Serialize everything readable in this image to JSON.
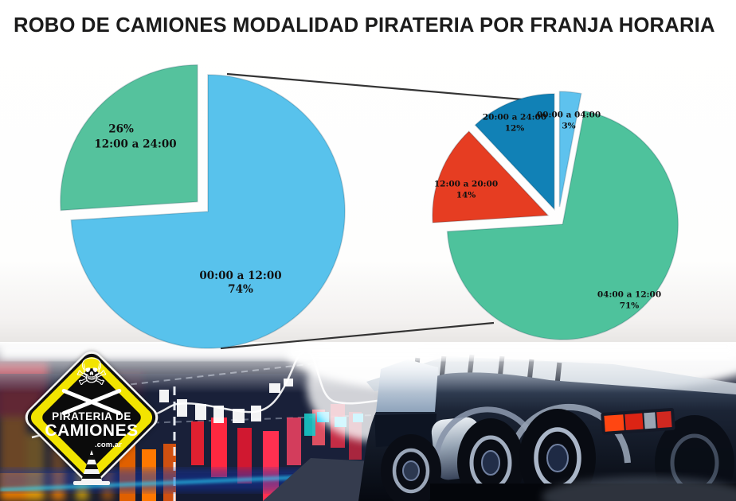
{
  "title": "ROBO DE CAMIONES MODALIDAD PIRATERIA POR FRANJA HORARIA",
  "logo": {
    "line1": "PIRATERIA DE",
    "line2": "CAMIONES",
    "line3": ".com.ar",
    "icon": "skull-crossbones-icon"
  },
  "chart_data": [
    {
      "type": "pie",
      "name": "robos-por-franja-principal",
      "title": "",
      "start_angle_deg": 0,
      "direction": "clockwise",
      "legend": "none",
      "labels": "inside",
      "slices": [
        {
          "label": "00:00 a 12:00",
          "value": 74,
          "pct_label": "74%",
          "color": "#58c2ec",
          "explode": 0
        },
        {
          "label": "12:00 a 24:00",
          "value": 26,
          "pct_label": "26%",
          "color": "#55c29d",
          "explode": 18
        }
      ]
    },
    {
      "type": "pie",
      "name": "robos-por-franja-detalle",
      "title": "",
      "start_angle_deg": 0,
      "direction": "clockwise",
      "legend": "none",
      "labels": "inside",
      "slices": [
        {
          "label": "00:00 a 04:00",
          "value": 3,
          "pct_label": "3%",
          "color": "#5ec2ee",
          "explode": 16
        },
        {
          "label": "04:00 a 12:00",
          "value": 71,
          "pct_label": "71%",
          "color": "#4ec29c",
          "explode": 8
        },
        {
          "label": "12:00 a 20:00",
          "value": 14,
          "pct_label": "14%",
          "color": "#e63d22",
          "explode": 14
        },
        {
          "label": "20:00 a 24:00",
          "value": 12,
          "pct_label": "12%",
          "color": "#1181b6",
          "explode": 14
        }
      ]
    }
  ]
}
